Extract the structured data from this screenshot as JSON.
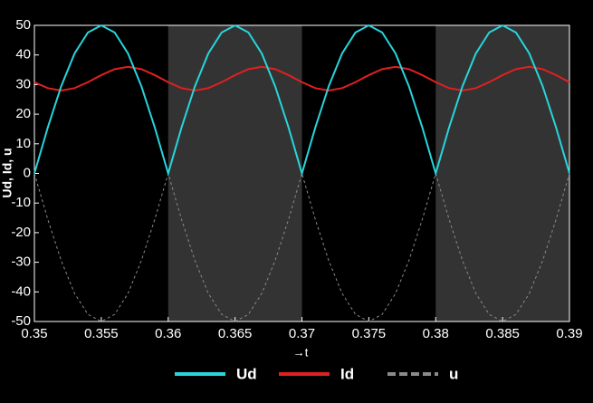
{
  "chart_data": {
    "type": "line",
    "xlabel": "→t",
    "ylabel": "Ud, Id, u",
    "x": [
      0.35,
      0.351,
      0.352,
      0.353,
      0.354,
      0.355,
      0.356,
      0.357,
      0.358,
      0.359,
      0.36,
      0.361,
      0.362,
      0.363,
      0.364,
      0.365,
      0.366,
      0.367,
      0.368,
      0.369,
      0.37,
      0.371,
      0.372,
      0.373,
      0.374,
      0.375,
      0.376,
      0.377,
      0.378,
      0.379,
      0.38,
      0.381,
      0.382,
      0.383,
      0.384,
      0.385,
      0.386,
      0.387,
      0.388,
      0.389,
      0.39
    ],
    "series": [
      {
        "name": "Ud",
        "color": "#27d5dc",
        "dash": false,
        "values": [
          0,
          15.5,
          29.4,
          40.5,
          47.6,
          50,
          47.6,
          40.5,
          29.4,
          15.5,
          0,
          15.5,
          29.4,
          40.5,
          47.6,
          50,
          47.6,
          40.5,
          29.4,
          15.5,
          0,
          15.5,
          29.4,
          40.5,
          47.6,
          50,
          47.6,
          40.5,
          29.4,
          15.5,
          0,
          15.5,
          29.4,
          40.5,
          47.6,
          50,
          47.6,
          40.5,
          29.4,
          15.5,
          0
        ]
      },
      {
        "name": "Id",
        "color": "#e02020",
        "dash": false,
        "values": [
          30.8,
          28.8,
          28,
          28.8,
          30.8,
          33.2,
          35.2,
          36,
          35.2,
          33.2,
          30.8,
          28.8,
          28,
          28.8,
          30.8,
          33.2,
          35.2,
          36,
          35.2,
          33.2,
          30.8,
          28.8,
          28,
          28.8,
          30.8,
          33.2,
          35.2,
          36,
          35.2,
          33.2,
          30.8,
          28.8,
          28,
          28.8,
          30.8,
          33.2,
          35.2,
          36,
          35.2,
          33.2,
          30.8
        ]
      },
      {
        "name": "u",
        "color": "#8a8a8a",
        "dash": true,
        "values": [
          0,
          -15.5,
          -29.4,
          -40.5,
          -47.6,
          -50,
          -47.6,
          -40.5,
          -29.4,
          -15.5,
          0,
          -15.5,
          -29.4,
          -40.5,
          -47.6,
          -50,
          -47.6,
          -40.5,
          -29.4,
          -15.5,
          0,
          -15.5,
          -29.4,
          -40.5,
          -47.6,
          -50,
          -47.6,
          -40.5,
          -29.4,
          -15.5,
          0,
          -15.5,
          -29.4,
          -40.5,
          -47.6,
          -50,
          -47.6,
          -40.5,
          -29.4,
          -15.5,
          0
        ]
      }
    ],
    "shaded_regions": [
      [
        0.36,
        0.37
      ],
      [
        0.38,
        0.39
      ]
    ],
    "shade_color": "#333333",
    "xlim": [
      0.35,
      0.39
    ],
    "xticks": [
      0.35,
      0.355,
      0.36,
      0.365,
      0.37,
      0.375,
      0.38,
      0.385,
      0.39
    ],
    "ylim": [
      -50,
      50
    ],
    "yticks": [
      -50,
      -40,
      -30,
      -20,
      -10,
      0,
      10,
      20,
      30,
      40,
      50
    ]
  }
}
